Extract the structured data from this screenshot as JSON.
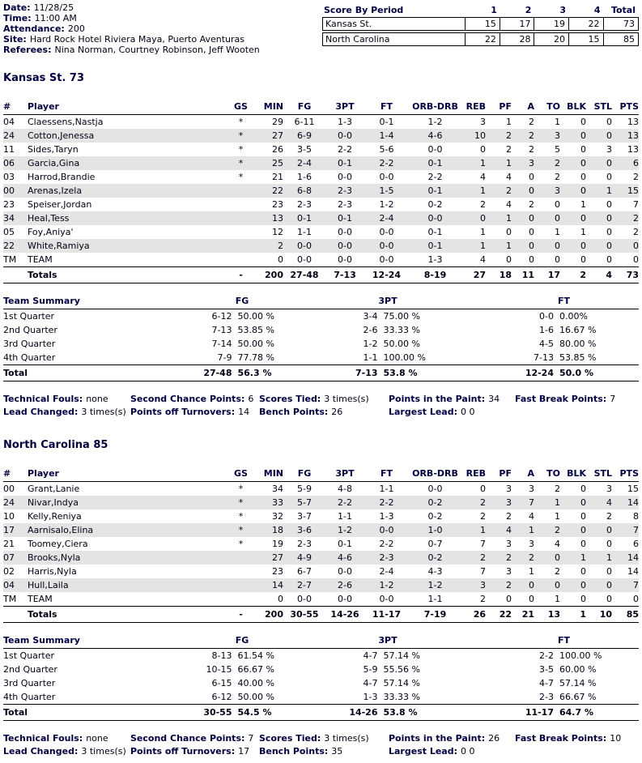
{
  "meta": {
    "labels": {
      "date": "Date:",
      "time": "Time:",
      "attendance": "Attendance:",
      "site": "Site:",
      "referees": "Referees:"
    },
    "date": "11/28/25",
    "time": "11:00 AM",
    "attendance": "200",
    "site": "Hard Rock Hotel Riviera Maya, Puerto Aventuras",
    "referees": "Nina Norman, Courtney Robinson, Jeff Wooten"
  },
  "colors": {
    "label_navy": "#000040",
    "row_stripe": "#e4e4e4",
    "border": "#000000"
  },
  "score_by_period": {
    "title": "Score By Period",
    "columns": [
      "1",
      "2",
      "3",
      "4",
      "Total"
    ],
    "rows": [
      {
        "team": "Kansas St.",
        "periods": [
          "15",
          "17",
          "19",
          "22"
        ],
        "total": "73"
      },
      {
        "team": "North Carolina",
        "periods": [
          "22",
          "28",
          "20",
          "15"
        ],
        "total": "85"
      }
    ]
  },
  "teams": [
    {
      "title": "Kansas St. 73",
      "box": {
        "headers": [
          "#",
          "Player",
          "GS",
          "MIN",
          "FG",
          "3PT",
          "FT",
          "ORB-DRB",
          "REB",
          "PF",
          "A",
          "TO",
          "BLK",
          "STL",
          "PTS"
        ],
        "rows": [
          [
            "04",
            "Claessens,Nastja",
            "*",
            "29",
            "6-11",
            "1-3",
            "0-1",
            "1-2",
            "3",
            "1",
            "2",
            "1",
            "0",
            "0",
            "13"
          ],
          [
            "24",
            "Cotton,Jenessa",
            "*",
            "27",
            "6-9",
            "0-0",
            "1-4",
            "4-6",
            "10",
            "2",
            "2",
            "3",
            "0",
            "0",
            "13"
          ],
          [
            "11",
            "Sides,Taryn",
            "*",
            "26",
            "3-5",
            "2-2",
            "5-6",
            "0-0",
            "0",
            "2",
            "2",
            "5",
            "0",
            "3",
            "13"
          ],
          [
            "06",
            "Garcia,Gina",
            "*",
            "25",
            "2-4",
            "0-1",
            "2-2",
            "0-1",
            "1",
            "1",
            "3",
            "2",
            "0",
            "0",
            "6"
          ],
          [
            "03",
            "Harrod,Brandie",
            "*",
            "21",
            "1-6",
            "0-0",
            "0-0",
            "2-2",
            "4",
            "4",
            "0",
            "2",
            "0",
            "0",
            "2"
          ],
          [
            "00",
            "Arenas,Izela",
            "",
            "22",
            "6-8",
            "2-3",
            "1-5",
            "0-1",
            "1",
            "2",
            "0",
            "3",
            "0",
            "1",
            "15"
          ],
          [
            "23",
            "Speiser,Jordan",
            "",
            "23",
            "2-3",
            "2-3",
            "1-2",
            "0-2",
            "2",
            "4",
            "2",
            "0",
            "1",
            "0",
            "7"
          ],
          [
            "34",
            "Heal,Tess",
            "",
            "13",
            "0-1",
            "0-1",
            "2-4",
            "0-0",
            "0",
            "1",
            "0",
            "0",
            "0",
            "0",
            "2"
          ],
          [
            "05",
            "Foy,Aniya'",
            "",
            "12",
            "1-1",
            "0-0",
            "0-0",
            "0-1",
            "1",
            "0",
            "0",
            "1",
            "1",
            "0",
            "2"
          ],
          [
            "22",
            "White,Ramiya",
            "",
            "2",
            "0-0",
            "0-0",
            "0-0",
            "0-1",
            "1",
            "1",
            "0",
            "0",
            "0",
            "0",
            "0"
          ],
          [
            "TM",
            "TEAM",
            "",
            "0",
            "0-0",
            "0-0",
            "0-0",
            "1-3",
            "4",
            "0",
            "0",
            "0",
            "0",
            "0",
            "0"
          ]
        ],
        "totals": [
          "",
          "Totals",
          "-",
          "200",
          "27-48",
          "7-13",
          "12-24",
          "8-19",
          "27",
          "18",
          "11",
          "17",
          "2",
          "4",
          "73"
        ]
      },
      "summary": {
        "title": "Team Summary",
        "columns": [
          "FG",
          "3PT",
          "FT"
        ],
        "rows": [
          {
            "label": "1st Quarter",
            "fg": [
              "6-12",
              "50.00 %"
            ],
            "tpt": [
              "3-4",
              "75.00 %"
            ],
            "ft": [
              "0-0",
              "0.00%"
            ]
          },
          {
            "label": "2nd Quarter",
            "fg": [
              "7-13",
              "53.85 %"
            ],
            "tpt": [
              "2-6",
              "33.33 %"
            ],
            "ft": [
              "1-6",
              "16.67 %"
            ]
          },
          {
            "label": "3rd Quarter",
            "fg": [
              "7-14",
              "50.00 %"
            ],
            "tpt": [
              "1-2",
              "50.00 %"
            ],
            "ft": [
              "4-5",
              "80.00 %"
            ]
          },
          {
            "label": "4th Quarter",
            "fg": [
              "7-9",
              "77.78 %"
            ],
            "tpt": [
              "1-1",
              "100.00 %"
            ],
            "ft": [
              "7-13",
              "53.85 %"
            ]
          }
        ],
        "total": {
          "label": "Total",
          "fg": [
            "27-48",
            "56.3 %"
          ],
          "tpt": [
            "7-13",
            "53.8 %"
          ],
          "ft": [
            "12-24",
            "50.0 %"
          ]
        }
      },
      "notes": [
        [
          {
            "label": "Technical Fouls:",
            "value": "none"
          },
          {
            "label": "Second Chance Points:",
            "value": "6"
          },
          {
            "label": "Scores Tied:",
            "value": "3 times(s)"
          },
          {
            "label": "Points in the Paint:",
            "value": "34"
          },
          {
            "label": "Fast Break Points:",
            "value": "7"
          }
        ],
        [
          {
            "label": "Lead Changed:",
            "value": "3 times(s)"
          },
          {
            "label": "Points off Turnovers:",
            "value": "14"
          },
          {
            "label": "Bench Points:",
            "value": "26"
          },
          {
            "label": "Largest Lead:",
            "value": "0 0"
          }
        ]
      ]
    },
    {
      "title": "North Carolina 85",
      "box": {
        "headers": [
          "#",
          "Player",
          "GS",
          "MIN",
          "FG",
          "3PT",
          "FT",
          "ORB-DRB",
          "REB",
          "PF",
          "A",
          "TO",
          "BLK",
          "STL",
          "PTS"
        ],
        "rows": [
          [
            "00",
            "Grant,Lanie",
            "*",
            "34",
            "5-9",
            "4-8",
            "1-1",
            "0-0",
            "0",
            "3",
            "3",
            "2",
            "0",
            "3",
            "15"
          ],
          [
            "24",
            "Nivar,Indya",
            "*",
            "33",
            "5-7",
            "2-2",
            "2-2",
            "0-2",
            "2",
            "3",
            "7",
            "1",
            "0",
            "4",
            "14"
          ],
          [
            "10",
            "Kelly,Reniya",
            "*",
            "32",
            "3-7",
            "1-1",
            "1-3",
            "0-2",
            "2",
            "2",
            "4",
            "1",
            "0",
            "2",
            "8"
          ],
          [
            "17",
            "Aarnisalo,Elina",
            "*",
            "18",
            "3-6",
            "1-2",
            "0-0",
            "1-0",
            "1",
            "4",
            "1",
            "2",
            "0",
            "0",
            "7"
          ],
          [
            "21",
            "Toomey,Ciera",
            "*",
            "19",
            "2-3",
            "0-1",
            "2-2",
            "0-7",
            "7",
            "3",
            "3",
            "4",
            "0",
            "0",
            "6"
          ],
          [
            "07",
            "Brooks,Nyla",
            "",
            "27",
            "4-9",
            "4-6",
            "2-3",
            "0-2",
            "2",
            "2",
            "2",
            "0",
            "1",
            "1",
            "14"
          ],
          [
            "02",
            "Harris,Nyla",
            "",
            "23",
            "6-7",
            "0-0",
            "2-4",
            "4-3",
            "7",
            "3",
            "1",
            "2",
            "0",
            "0",
            "14"
          ],
          [
            "04",
            "Hull,Laila",
            "",
            "14",
            "2-7",
            "2-6",
            "1-2",
            "1-2",
            "3",
            "2",
            "0",
            "0",
            "0",
            "0",
            "7"
          ],
          [
            "TM",
            "TEAM",
            "",
            "0",
            "0-0",
            "0-0",
            "0-0",
            "1-1",
            "2",
            "0",
            "0",
            "1",
            "0",
            "0",
            "0"
          ]
        ],
        "totals": [
          "",
          "Totals",
          "-",
          "200",
          "30-55",
          "14-26",
          "11-17",
          "7-19",
          "26",
          "22",
          "21",
          "13",
          "1",
          "10",
          "85"
        ]
      },
      "summary": {
        "title": "Team Summary",
        "columns": [
          "FG",
          "3PT",
          "FT"
        ],
        "rows": [
          {
            "label": "1st Quarter",
            "fg": [
              "8-13",
              "61.54 %"
            ],
            "tpt": [
              "4-7",
              "57.14 %"
            ],
            "ft": [
              "2-2",
              "100.00 %"
            ]
          },
          {
            "label": "2nd Quarter",
            "fg": [
              "10-15",
              "66.67 %"
            ],
            "tpt": [
              "5-9",
              "55.56 %"
            ],
            "ft": [
              "3-5",
              "60.00 %"
            ]
          },
          {
            "label": "3rd Quarter",
            "fg": [
              "6-15",
              "40.00 %"
            ],
            "tpt": [
              "4-7",
              "57.14 %"
            ],
            "ft": [
              "4-7",
              "57.14 %"
            ]
          },
          {
            "label": "4th Quarter",
            "fg": [
              "6-12",
              "50.00 %"
            ],
            "tpt": [
              "1-3",
              "33.33 %"
            ],
            "ft": [
              "2-3",
              "66.67 %"
            ]
          }
        ],
        "total": {
          "label": "Total",
          "fg": [
            "30-55",
            "54.5 %"
          ],
          "tpt": [
            "14-26",
            "53.8 %"
          ],
          "ft": [
            "11-17",
            "64.7 %"
          ]
        }
      },
      "notes": [
        [
          {
            "label": "Technical Fouls:",
            "value": "none"
          },
          {
            "label": "Second Chance Points:",
            "value": "7"
          },
          {
            "label": "Scores Tied:",
            "value": "3 times(s)"
          },
          {
            "label": "Points in the Paint:",
            "value": "26"
          },
          {
            "label": "Fast Break Points:",
            "value": "10"
          }
        ],
        [
          {
            "label": "Lead Changed:",
            "value": "3 times(s)"
          },
          {
            "label": "Points off Turnovers:",
            "value": "17"
          },
          {
            "label": "Bench Points:",
            "value": "35"
          },
          {
            "label": "Largest Lead:",
            "value": "0 0"
          }
        ]
      ]
    }
  ]
}
